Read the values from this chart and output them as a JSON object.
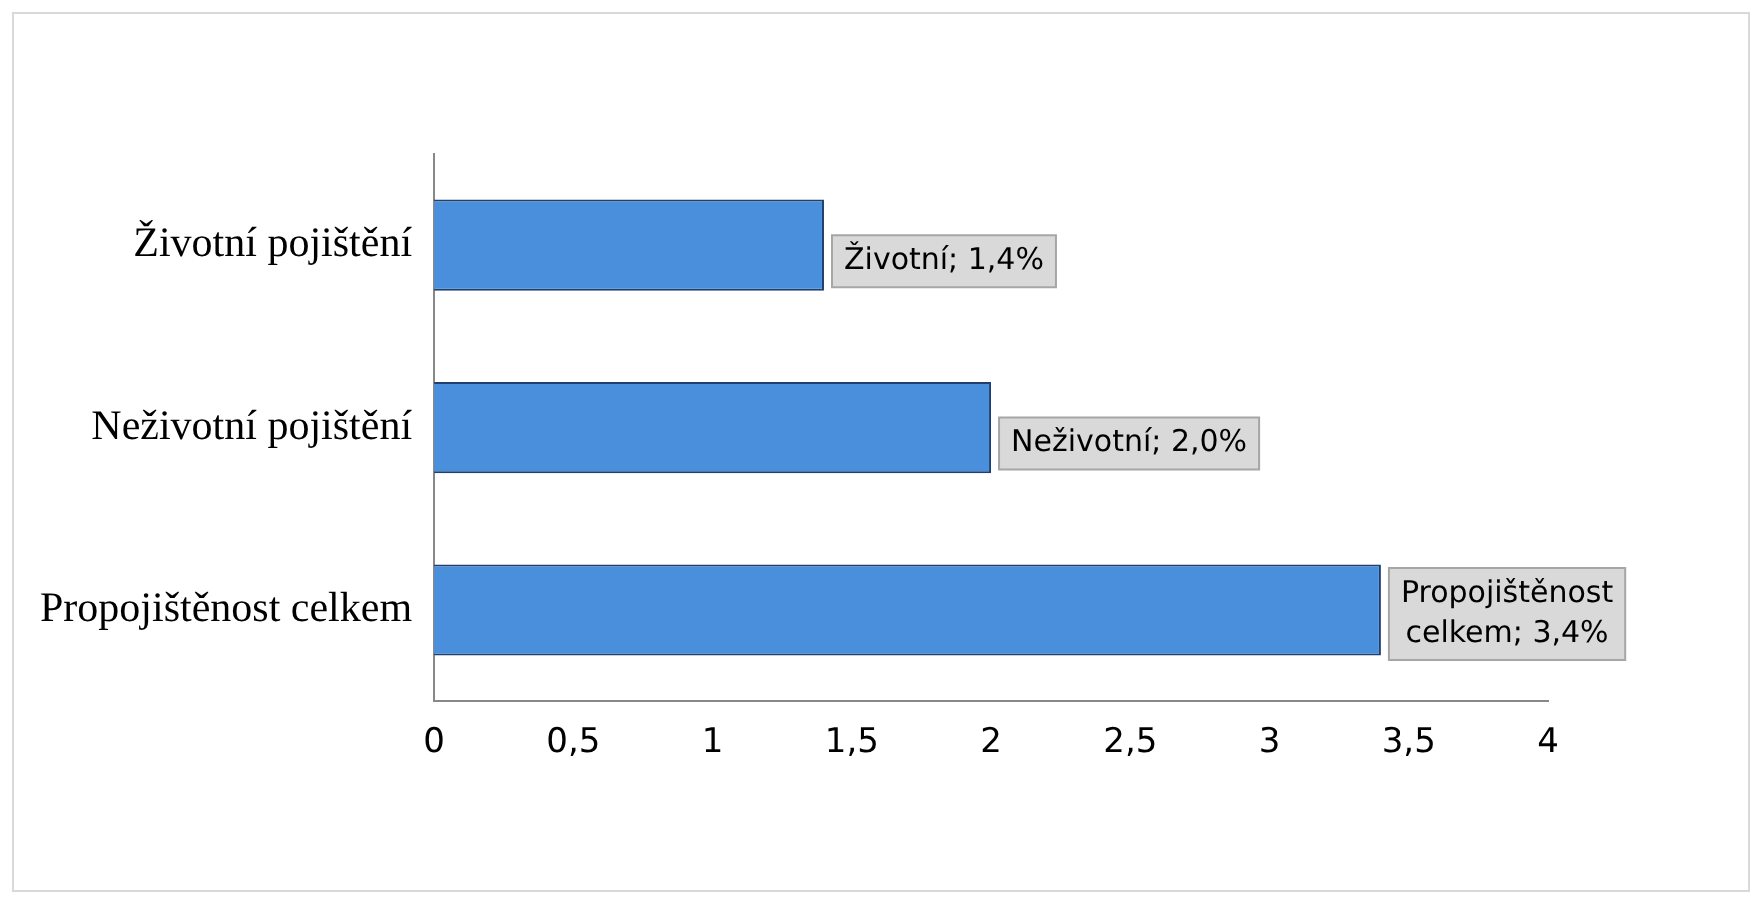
{
  "chart_data": {
    "type": "bar",
    "orientation": "horizontal",
    "categories": [
      "Životní pojištění",
      "Neživotní pojištění",
      "Propojištěnost celkem"
    ],
    "values": [
      1.4,
      2.0,
      3.4
    ],
    "value_labels": [
      "Životní; 1,4%",
      "Neživotní; 2,0%",
      "Propojištěnost celkem; 3,4%"
    ],
    "color": "#4a8fdc",
    "xlim": [
      0,
      4
    ],
    "xticks": [
      0,
      {
        "value": 0.5,
        "label": "0,5"
      },
      1,
      {
        "value": 1.5,
        "label": "1,5"
      },
      2,
      {
        "value": 2.5,
        "label": "2,5"
      },
      3,
      {
        "value": 3.5,
        "label": "3,5"
      },
      4
    ],
    "grid": false,
    "legend": false
  }
}
